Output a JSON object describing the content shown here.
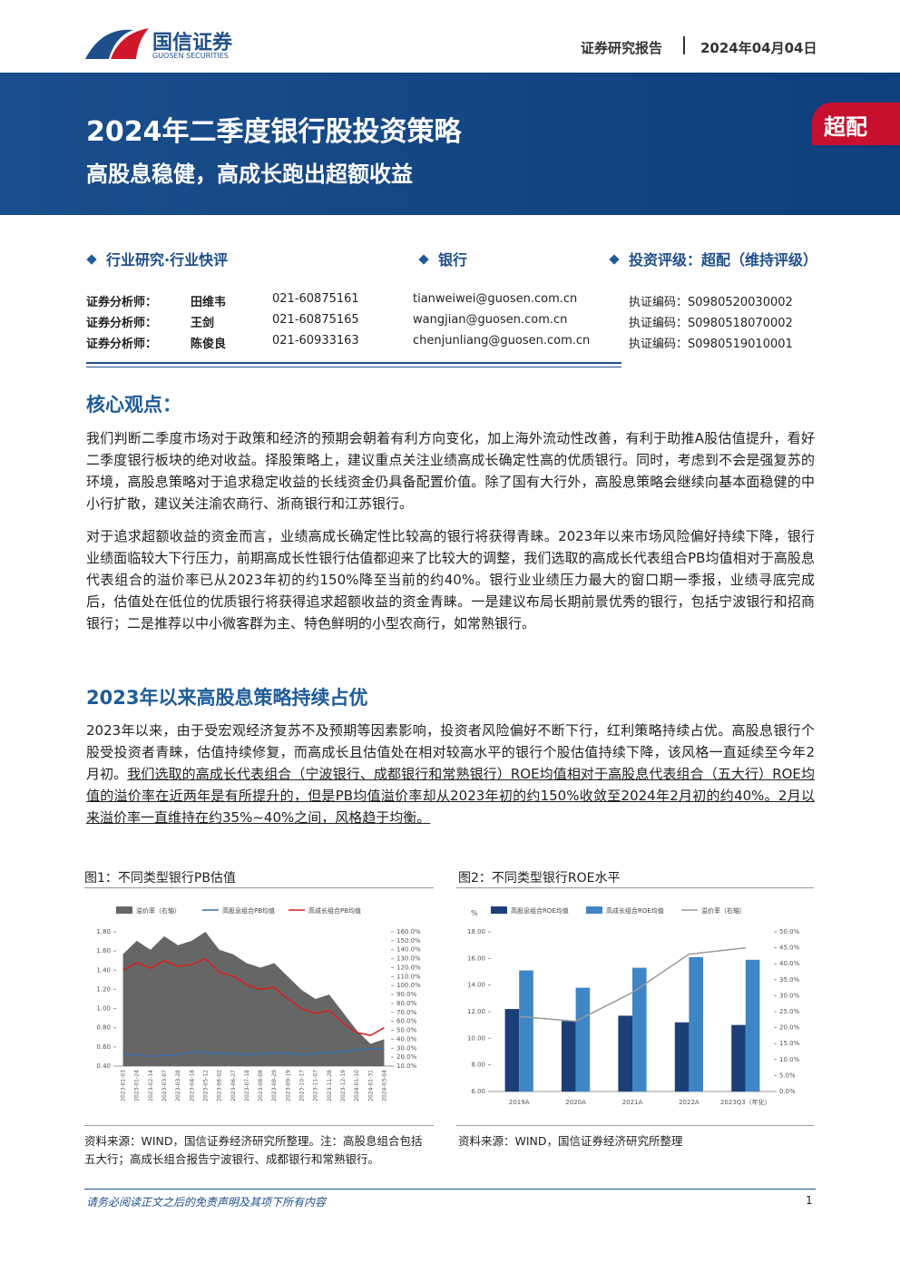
{
  "header": {
    "company": "国信证券",
    "company_en": "GUOSEN SECURITIES",
    "report_type": "证券研究报告",
    "date": "2024年04月04日"
  },
  "banner": {
    "title": "2024年二季度银行股投资策略",
    "subtitle": "高股息稳健，高成长跑出超额收益",
    "rating": "超配"
  },
  "meta": {
    "category": "行业研究·行业快评",
    "industry": "银行",
    "rating": "投资评级：超配（维持评级）"
  },
  "analysts": {
    "rows": [
      [
        "证券分析师：",
        "田维韦",
        "021-60875161",
        "tianweiwei@guosen.com.cn",
        "执证编码：S0980520030002"
      ],
      [
        "证券分析师：",
        "王剑",
        "021-60875165",
        "wangjian@guosen.com.cn",
        "执证编码：S0980518070002"
      ],
      [
        "证券分析师：",
        "陈俊良",
        "021-60933163",
        "chenjunliang@guosen.com.cn",
        "执证编码：S0980519010001"
      ]
    ]
  },
  "core": {
    "heading": "核心观点：",
    "paragraphs": [
      "我们判断二季度市场对于政策和经济的预期会朝着有利方向变化，加上海外流动性改善，有利于助推A股估值提升，看好二季度银行板块的绝对收益。择股策略上，建议重点关注业绩高成长确定性高的优质银行。同时，考虑到不会是强复苏的环境，高股息策略对于追求稳定收益的长线资金仍具备配置价值。除了国有大行外，高股息策略会继续向基本面稳健的中小行扩散，建议关注渝农商行、浙商银行和江苏银行。",
      "对于追求超额收益的资金而言，业绩高成长确定性比较高的银行将获得青睐。2023年以来市场风险偏好持续下降，银行业绩面临较大下行压力，前期高成长性银行估值都迎来了比较大的调整，我们选取的高成长代表组合PB均值相对于高股息代表组合的溢价率已从2023年初的约150%降至当前的约40%。银行业业绩压力最大的窗口期一季报，业绩寻底完成后，估值处在低位的优质银行将获得追求超额收益的资金青睐。一是建议布局长期前景优秀的银行，包括宁波银行和招商银行；二是推荐以中小微客群为主、特色鲜明的小型农商行，如常熟银行。"
    ]
  },
  "section": {
    "heading": "2023年以来高股息策略持续占优",
    "runs": [
      {
        "text": "2023年以来，由于受宏观经济复苏不及预期等因素影响，投资者风险偏好不断下行，红利策略持续占优。高股息银行个股受投资者青睐，估值持续修复，而高成长且估值处在相对较高水平的银行个股估值持续下降，该风格一直延续至今年2月初。",
        "underline": false
      },
      {
        "text": "我们选取的高成长代表组合（宁波银行、成都银行和常熟银行）ROE均值相对于高股息代表组合（五大行）ROE均值的溢价率在近两年是有所提升的，但是PB均值溢价率却从2023年初的约150%收敛至2024年2月初的约40%。2月以来溢价率一直维持在约35%~40%之间，风格趋于均衡。",
        "underline": true
      }
    ]
  },
  "figures": [
    {
      "caption": "图1：不同类型银行PB估值",
      "source": "资料来源：WIND，国信证券经济研究所整理。注：高股息组合包括五大行；高成长组合报告宁波银行、成都银行和常熟银行。",
      "chart_data": {
        "type": "line",
        "categories": [
          "2023-01-03",
          "2023-01-24",
          "2023-02-14",
          "2023-03-07",
          "2023-03-28",
          "2023-04-18",
          "2023-05-12",
          "2023-06-02",
          "2023-06-27",
          "2023-07-18",
          "2023-08-08",
          "2023-08-29",
          "2023-09-19",
          "2023-10-17",
          "2023-11-07",
          "2023-11-28",
          "2023-12-19",
          "2024-01-10",
          "2024-01-31",
          "2024-03-04"
        ],
        "series": [
          {
            "name": "溢价率（右轴）",
            "type": "area",
            "axis": "y2",
            "color": "#666666",
            "values": [
              135,
              150,
              140,
              155,
              145,
              150,
              160,
              140,
              135,
              125,
              120,
              125,
              110,
              95,
              85,
              90,
              70,
              50,
              35,
              40
            ]
          },
          {
            "name": "高股息组合PB均值",
            "type": "line",
            "color": "#3a6fb0",
            "values": [
              0.52,
              0.52,
              0.5,
              0.51,
              0.52,
              0.55,
              0.54,
              0.53,
              0.53,
              0.52,
              0.53,
              0.54,
              0.53,
              0.52,
              0.53,
              0.54,
              0.55,
              0.57,
              0.58,
              0.58
            ]
          },
          {
            "name": "高成长组合PB均值",
            "type": "line",
            "color": "#d91e1e",
            "values": [
              1.4,
              1.48,
              1.42,
              1.5,
              1.44,
              1.46,
              1.52,
              1.38,
              1.34,
              1.25,
              1.2,
              1.22,
              1.1,
              1.0,
              0.95,
              0.98,
              0.85,
              0.75,
              0.72,
              0.8
            ]
          }
        ],
        "ylim": [
          0.4,
          1.8
        ],
        "yticks": [
          {
            "value": 0.4,
            "label": "0.40"
          },
          {
            "value": 0.6,
            "label": "0.60"
          },
          {
            "value": 0.8,
            "label": "0.80"
          },
          {
            "value": 1.0,
            "label": "1.00"
          },
          {
            "value": 1.2,
            "label": "1.20"
          },
          {
            "value": 1.4,
            "label": "1.40"
          },
          {
            "value": 1.6,
            "label": "1.60"
          },
          {
            "value": 1.8,
            "label": "1.80"
          }
        ],
        "y2lim": [
          10,
          160
        ],
        "y2ticks": [
          {
            "value": 10,
            "label": "10.0%"
          },
          {
            "value": 20,
            "label": "20.0%"
          },
          {
            "value": 30,
            "label": "30.0%"
          },
          {
            "value": 40,
            "label": "40.0%"
          },
          {
            "value": 50,
            "label": "50.0%"
          },
          {
            "value": 60,
            "label": "60.0%"
          },
          {
            "value": 70,
            "label": "70.0%"
          },
          {
            "value": 80,
            "label": "80.0%"
          },
          {
            "value": 90,
            "label": "90.0%"
          },
          {
            "value": 100,
            "label": "100.0%"
          },
          {
            "value": 110,
            "label": "110.0%"
          },
          {
            "value": 120,
            "label": "120.0%"
          },
          {
            "value": 130,
            "label": "130.0%"
          },
          {
            "value": 140,
            "label": "140.0%"
          },
          {
            "value": 150,
            "label": "150.0%"
          },
          {
            "value": 160,
            "label": "160.0%"
          }
        ],
        "rotate_x_labels": true
      }
    },
    {
      "caption": "图2：不同类型银行ROE水平",
      "source": "资料来源：WIND，国信证券经济研究所整理",
      "chart_data": {
        "type": "bar",
        "y_label": "%",
        "categories": [
          "2019A",
          "2020A",
          "2021A",
          "2022A",
          "2023Q3（年化）"
        ],
        "series": [
          {
            "name": "高股息组合ROE均值",
            "type": "bar",
            "color": "#1c3f78",
            "values": [
              12.2,
              11.3,
              11.7,
              11.2,
              11.0
            ]
          },
          {
            "name": "高成长组合ROE均值",
            "type": "bar",
            "color": "#3f86c6",
            "values": [
              15.1,
              13.8,
              15.3,
              16.1,
              15.9
            ]
          },
          {
            "name": "溢价率（右轴）",
            "type": "line",
            "axis": "y2",
            "color": "#999999",
            "values": [
              23.5,
              22,
              31,
              43,
              45
            ]
          }
        ],
        "ylim": [
          6,
          18
        ],
        "yticks": [
          {
            "value": 6,
            "label": "6.00"
          },
          {
            "value": 8,
            "label": "8.00"
          },
          {
            "value": 10,
            "label": "10.00"
          },
          {
            "value": 12,
            "label": "12.00"
          },
          {
            "value": 14,
            "label": "14.00"
          },
          {
            "value": 16,
            "label": "16.00"
          },
          {
            "value": 18,
            "label": "18.00"
          }
        ],
        "y2lim": [
          0,
          50
        ],
        "y2ticks": [
          {
            "value": 0,
            "label": "0.0%"
          },
          {
            "value": 5,
            "label": "5.0%"
          },
          {
            "value": 10,
            "label": "10.0%"
          },
          {
            "value": 15,
            "label": "15.0%"
          },
          {
            "value": 20,
            "label": "20.0%"
          },
          {
            "value": 25,
            "label": "25.0%"
          },
          {
            "value": 30,
            "label": "30.0%"
          },
          {
            "value": 35,
            "label": "35.0%"
          },
          {
            "value": 40,
            "label": "40.0%"
          },
          {
            "value": 45,
            "label": "45.0%"
          },
          {
            "value": 50,
            "label": "50.0%"
          }
        ],
        "rotate_x_labels": false
      }
    }
  ],
  "footer": {
    "disclaimer": "请务必阅读正文之后的免责声明及其项下所有内容",
    "page": "1"
  }
}
